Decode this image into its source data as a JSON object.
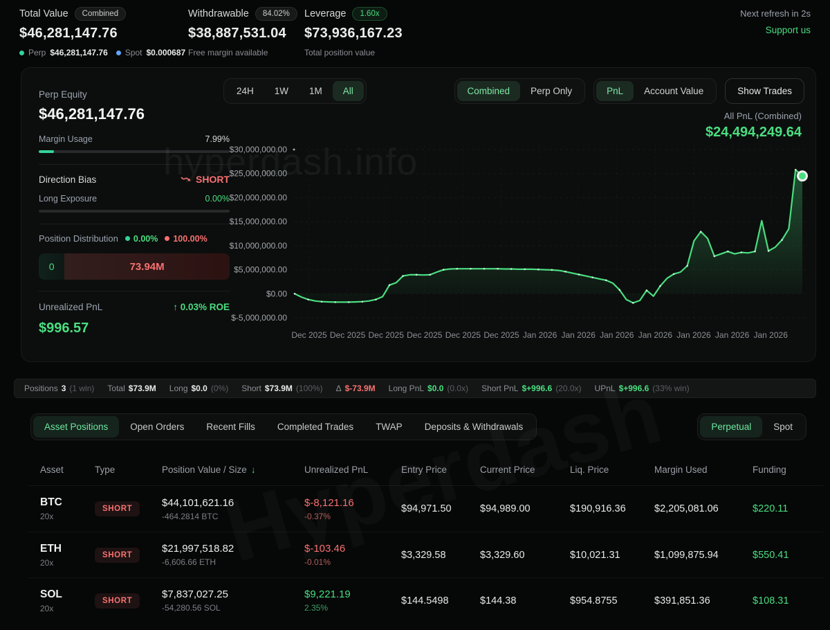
{
  "header": {
    "total_value": {
      "label": "Total Value",
      "badge": "Combined",
      "value": "$46,281,147.76",
      "perp_label": "Perp",
      "perp_value": "$46,281,147.76",
      "spot_label": "Spot",
      "spot_value": "$0.000687"
    },
    "withdrawable": {
      "label": "Withdrawable",
      "badge": "84.02%",
      "value": "$38,887,531.04",
      "sub": "Free margin available"
    },
    "leverage": {
      "label": "Leverage",
      "badge": "1.60x",
      "value": "$73,936,167.23",
      "sub": "Total position value"
    },
    "refresh_text": "Next refresh in 2s",
    "support_link": "Support us"
  },
  "panel": {
    "perp_equity_label": "Perp Equity",
    "perp_equity_value": "$46,281,147.76",
    "margin_usage_label": "Margin Usage",
    "margin_usage_pct_text": "7.99%",
    "margin_usage_pct": 7.99,
    "direction_bias_label": "Direction Bias",
    "direction_bias_value": "SHORT",
    "long_exposure_label": "Long Exposure",
    "long_exposure_pct_text": "0.00%",
    "long_exposure_pct": 0,
    "distribution_label": "Position Distribution",
    "distribution_long_pct": "0.00%",
    "distribution_short_pct": "100.00%",
    "distribution_long_amount": "0",
    "distribution_short_amount": "73.94M",
    "unrealized_label": "Unrealized PnL",
    "unrealized_roe": "0.03% ROE",
    "unrealized_value": "$996.57"
  },
  "chart": {
    "ranges": [
      "24H",
      "1W",
      "1M",
      "All"
    ],
    "active_range_index": 3,
    "modes": [
      "Combined",
      "Perp Only"
    ],
    "active_mode_index": 0,
    "views": [
      "PnL",
      "Account Value"
    ],
    "active_view_index": 0,
    "show_trades_label": "Show Trades",
    "pnl_label": "All PnL (Combined)",
    "pnl_value": "$24,494,249.64",
    "watermark": "hyperdash.info"
  },
  "chart_data": {
    "type": "area",
    "title": "All PnL (Combined)",
    "end_value": 24494249.64,
    "values_unit": "million USD",
    "ylim": [
      -5,
      30
    ],
    "grid": true,
    "line_color": "#4ade80",
    "y_ticks": [
      "$30,000,000.00",
      "$25,000,000.00",
      "$20,000,000.00",
      "$15,000,000.00",
      "$10,000,000.00",
      "$5,000,000.00",
      "$0.00",
      "$-5,000,000.00"
    ],
    "y_tick_values": [
      30,
      25,
      20,
      15,
      10,
      5,
      0,
      -5
    ],
    "x_labels": [
      "Dec 2025",
      "Dec 2025",
      "Dec 2025",
      "Dec 2025",
      "Dec 2025",
      "Dec 2025",
      "Jan 2026",
      "Jan 2026",
      "Jan 2026",
      "Jan 2026",
      "Jan 2026",
      "Jan 2026",
      "Jan 2026"
    ],
    "series": [
      {
        "name": "All PnL (Combined)",
        "values": [
          0,
          -0.7,
          -1.2,
          -1.5,
          -1.65,
          -1.7,
          -1.75,
          -1.75,
          -1.75,
          -1.7,
          -1.65,
          -1.5,
          -1.2,
          -0.6,
          1.8,
          2.3,
          3.7,
          3.95,
          3.95,
          3.9,
          3.95,
          4.5,
          5.0,
          5.15,
          5.2,
          5.2,
          5.2,
          5.2,
          5.2,
          5.2,
          5.2,
          5.15,
          5.15,
          5.1,
          5.1,
          5.1,
          5.05,
          5.0,
          4.95,
          4.85,
          4.6,
          4.3,
          4.0,
          3.7,
          3.4,
          3.1,
          2.8,
          2.2,
          0.8,
          -1.2,
          -1.9,
          -1.4,
          0.7,
          -0.5,
          1.6,
          3.2,
          4.1,
          4.5,
          5.8,
          11.0,
          12.9,
          11.5,
          7.8,
          8.3,
          8.8,
          8.3,
          8.6,
          8.5,
          8.8,
          15.2,
          8.9,
          9.7,
          11.2,
          13.5,
          25.8,
          24.5
        ]
      }
    ]
  },
  "summary": {
    "items": [
      {
        "label": "Positions",
        "value": "3",
        "extra": "(1 win)",
        "cls": "white"
      },
      {
        "label": "Total",
        "value": "$73.9M",
        "extra": "",
        "cls": "white"
      },
      {
        "label": "Long",
        "value": "$0.0",
        "extra": "(0%)",
        "cls": "white"
      },
      {
        "label": "Short",
        "value": "$73.9M",
        "extra": "(100%)",
        "cls": "white"
      },
      {
        "label": "Δ",
        "value": "$-73.9M",
        "extra": "",
        "cls": "red"
      },
      {
        "label": "Long PnL",
        "value": "$0.0",
        "extra": "(0.0x)",
        "cls": "green"
      },
      {
        "label": "Short PnL",
        "value": "$+996.6",
        "extra": "(20.0x)",
        "cls": "green"
      },
      {
        "label": "UPnL",
        "value": "$+996.6",
        "extra": "(33% win)",
        "cls": "green"
      }
    ]
  },
  "tabs": {
    "items": [
      "Asset Positions",
      "Open Orders",
      "Recent Fills",
      "Completed Trades",
      "TWAP",
      "Deposits & Withdrawals"
    ],
    "active_index": 0
  },
  "market_tabs": {
    "items": [
      "Perpetual",
      "Spot"
    ],
    "active_index": 0
  },
  "table": {
    "headers": [
      "Asset",
      "Type",
      "Position Value / Size",
      "Unrealized PnL",
      "Entry Price",
      "Current Price",
      "Liq. Price",
      "Margin Used",
      "Funding"
    ],
    "sorted_header_index": 2,
    "rows": [
      {
        "asset": "BTC",
        "leverage": "20x",
        "side": "SHORT",
        "value": "$44,101,621.16",
        "size": "-464.2814 BTC",
        "upnl": "$-8,121.16",
        "upnl_pct": "-0.37%",
        "upnl_cls": "neg",
        "entry": "$94,971.50",
        "current": "$94,989.00",
        "liq": "$190,916.36",
        "margin": "$2,205,081.06",
        "funding": "$220.11"
      },
      {
        "asset": "ETH",
        "leverage": "20x",
        "side": "SHORT",
        "value": "$21,997,518.82",
        "size": "-6,606.66 ETH",
        "upnl": "$-103.46",
        "upnl_pct": "-0.01%",
        "upnl_cls": "neg",
        "entry": "$3,329.58",
        "current": "$3,329.60",
        "liq": "$10,021.31",
        "margin": "$1,099,875.94",
        "funding": "$550.41"
      },
      {
        "asset": "SOL",
        "leverage": "20x",
        "side": "SHORT",
        "value": "$7,837,027.25",
        "size": "-54,280.56 SOL",
        "upnl": "$9,221.19",
        "upnl_pct": "2.35%",
        "upnl_cls": "pos",
        "entry": "$144.5498",
        "current": "$144.38",
        "liq": "$954.8755",
        "margin": "$391,851.36",
        "funding": "$108.31"
      }
    ]
  },
  "watermark_diagonal": "Hyperdash"
}
